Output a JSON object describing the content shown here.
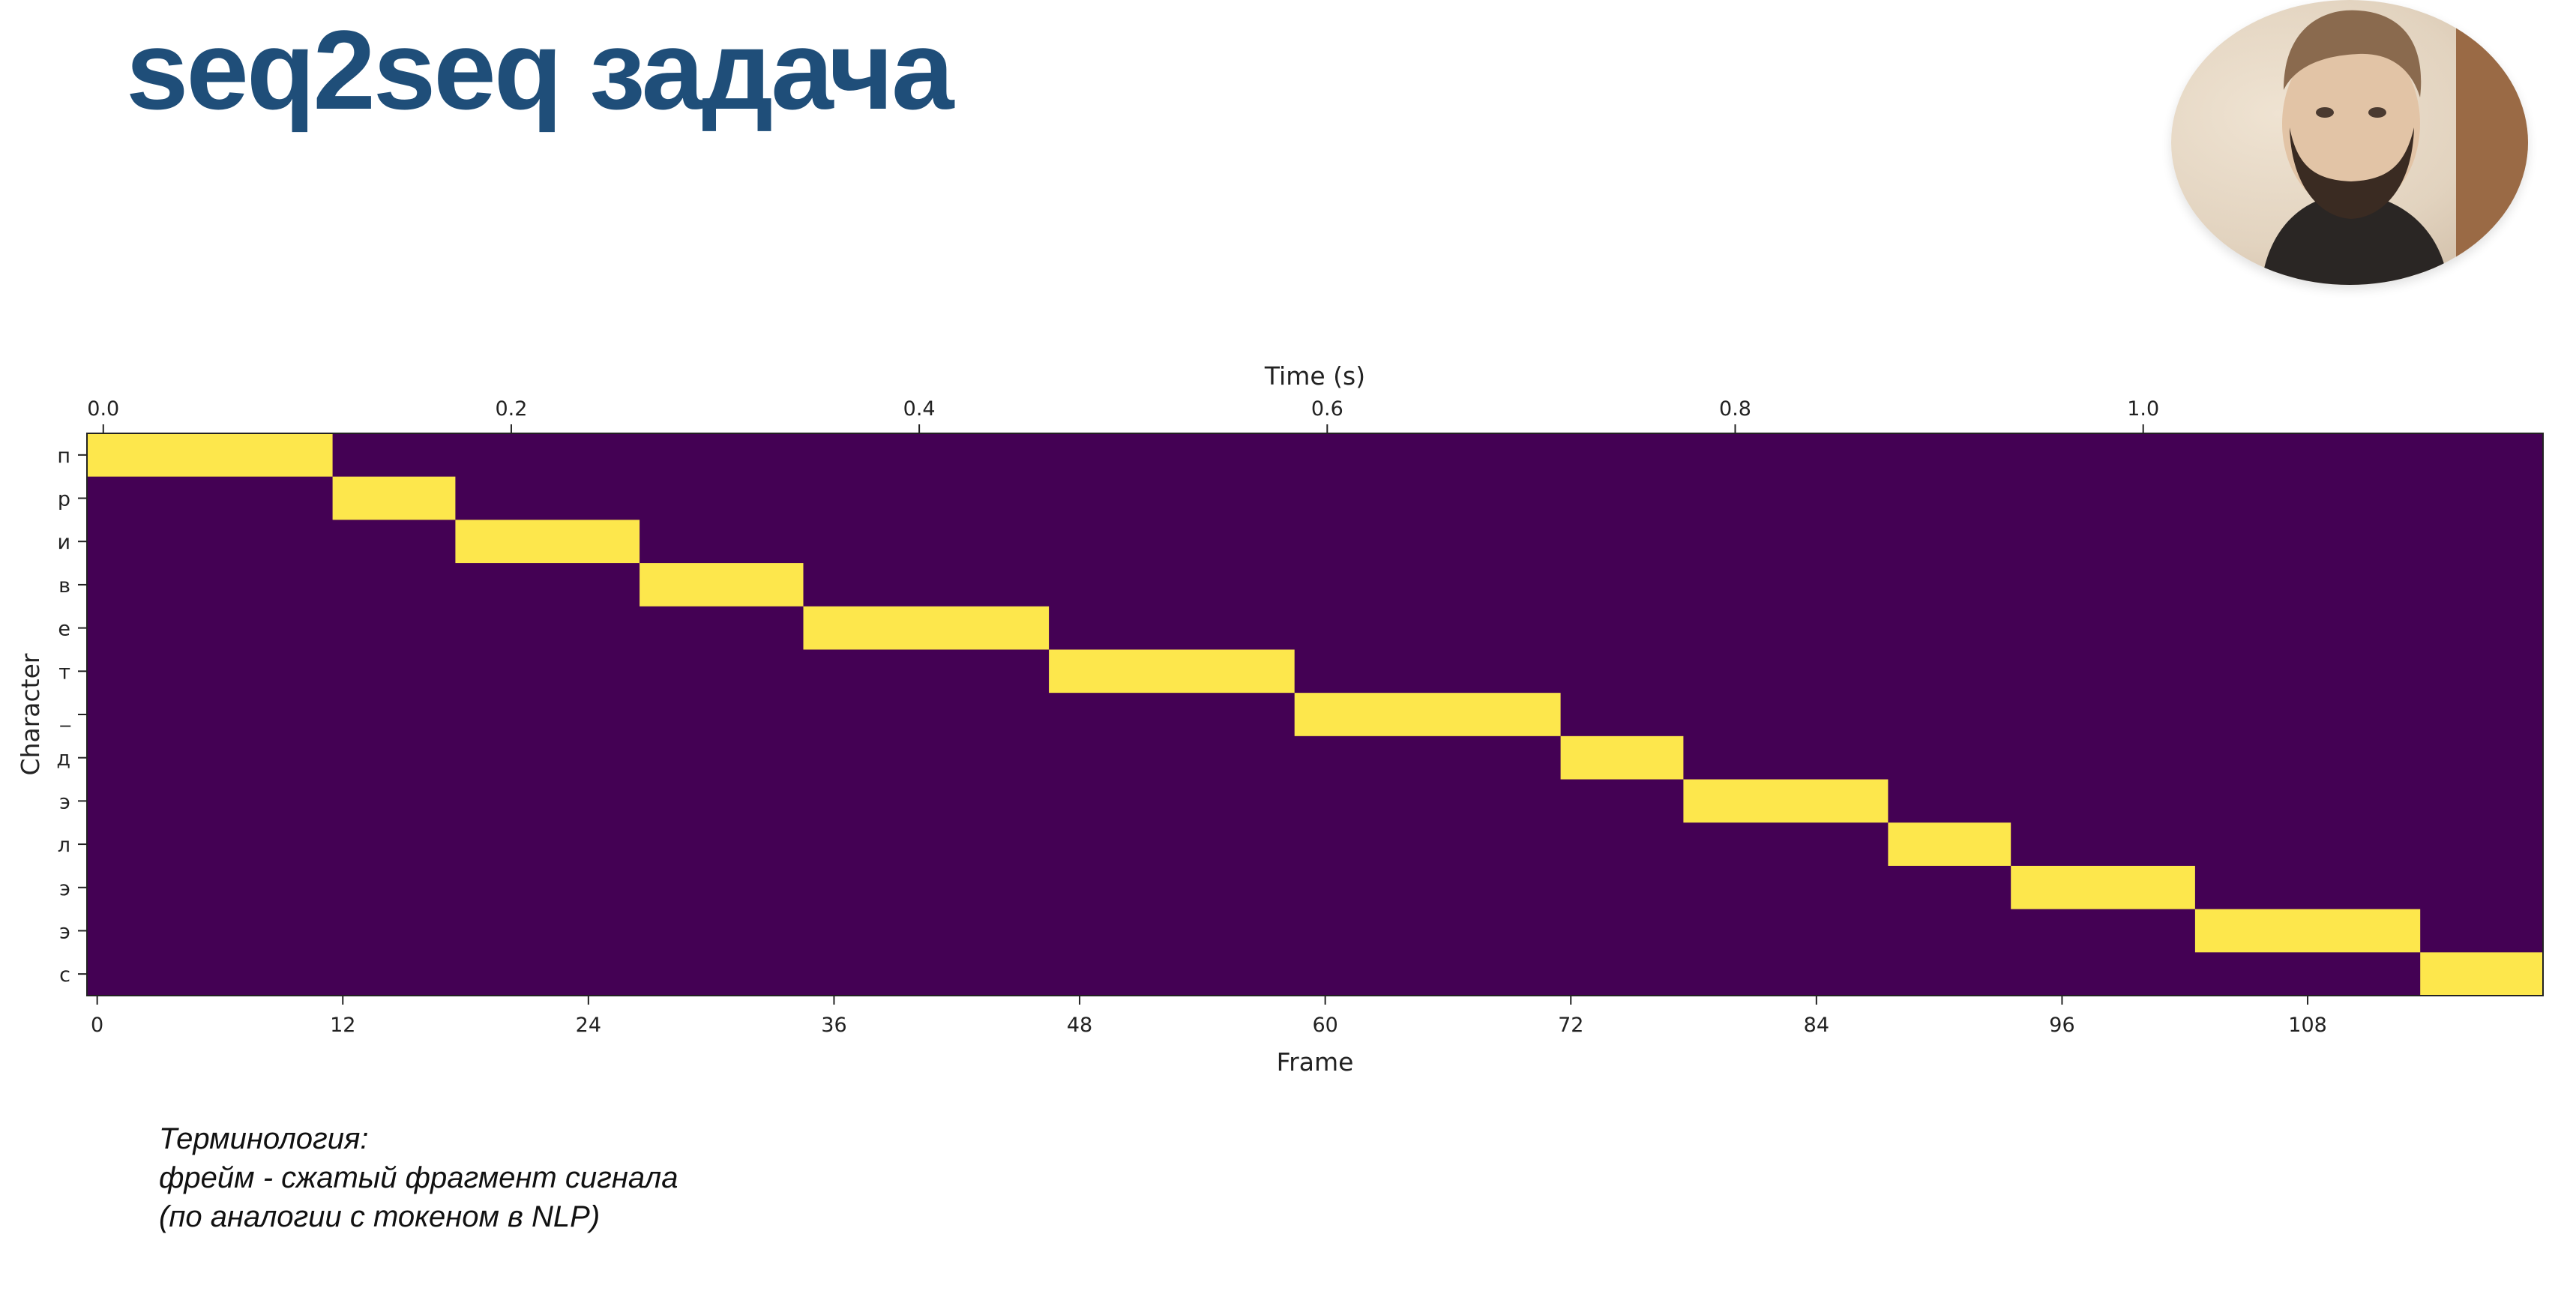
{
  "slide": {
    "title": "seq2seq задача",
    "title_color": "#1f4e79"
  },
  "webcam": {
    "icon": "presenter-video-icon"
  },
  "notes": {
    "heading": "Терминология:",
    "line1": "фрейм - сжатый фрагмент сигнала",
    "line2": "(по аналогии с токеном в NLP)"
  },
  "chart_data": {
    "type": "heatmap",
    "title": "",
    "xlabel": "Frame",
    "x2label": "Time (s)",
    "ylabel": "Character",
    "x_ticks": [
      0,
      12,
      24,
      36,
      48,
      60,
      72,
      84,
      96,
      108
    ],
    "x_tick_labels": [
      "0",
      "12",
      "24",
      "36",
      "48",
      "60",
      "72",
      "84",
      "96",
      "108"
    ],
    "x2_ticks": [
      0.0,
      0.2,
      0.4,
      0.6,
      0.8,
      1.0
    ],
    "x2_tick_labels": [
      "0.0",
      "0.2",
      "0.4",
      "0.6",
      "0.8",
      "1.0"
    ],
    "xlim": [
      -0.5,
      119.5
    ],
    "x2lim": [
      -0.008,
      1.196
    ],
    "characters": [
      "п",
      "р",
      "и",
      "в",
      "е",
      "т",
      "_",
      "д",
      "э",
      "л",
      "э",
      "э",
      "с"
    ],
    "segments": [
      {
        "char": "п",
        "start": 0,
        "end": 11
      },
      {
        "char": "р",
        "start": 12,
        "end": 17
      },
      {
        "char": "и",
        "start": 18,
        "end": 26
      },
      {
        "char": "в",
        "start": 27,
        "end": 34
      },
      {
        "char": "е",
        "start": 35,
        "end": 46
      },
      {
        "char": "т",
        "start": 47,
        "end": 58
      },
      {
        "char": "_",
        "start": 59,
        "end": 71
      },
      {
        "char": "д",
        "start": 72,
        "end": 77
      },
      {
        "char": "э",
        "start": 78,
        "end": 87
      },
      {
        "char": "л",
        "start": 88,
        "end": 93
      },
      {
        "char": "э",
        "start": 94,
        "end": 102
      },
      {
        "char": "э",
        "start": 103,
        "end": 113
      },
      {
        "char": "с",
        "start": 114,
        "end": 119
      }
    ],
    "colors": {
      "background": "#440154",
      "active": "#fde74c",
      "axis": "#222222"
    },
    "grid": false,
    "legend": "none"
  }
}
